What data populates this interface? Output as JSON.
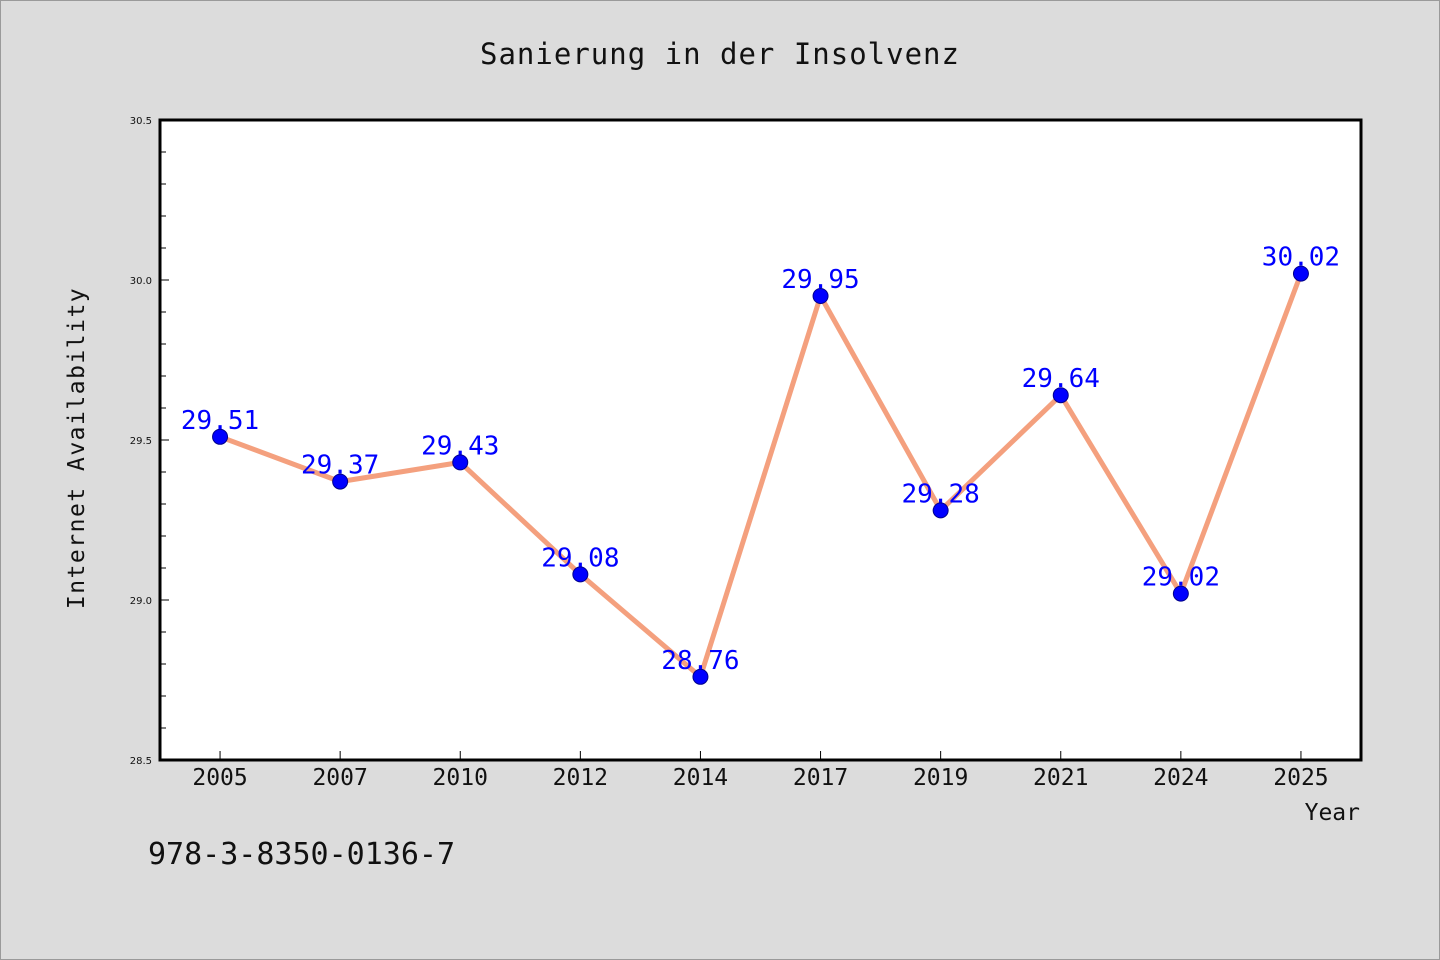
{
  "chart_data": {
    "type": "line",
    "title": "Sanierung in der Insolvenz",
    "xlabel": "Year",
    "ylabel": "Internet Availability",
    "categories": [
      "2005",
      "2007",
      "2010",
      "2012",
      "2014",
      "2017",
      "2019",
      "2021",
      "2024",
      "2025"
    ],
    "series": [
      {
        "values": [
          29.51,
          29.37,
          29.43,
          29.08,
          28.76,
          29.95,
          29.28,
          29.64,
          29.02,
          30.02
        ]
      }
    ],
    "data_labels": [
      "29.51",
      "29.37",
      "29.43",
      "29.08",
      "28.76",
      "29.95",
      "29.28",
      "29.64",
      "29.02",
      "30.02"
    ],
    "ylim": [
      28.5,
      30.5
    ],
    "yticks": [
      "28.5",
      "29.0",
      "29.5",
      "30.0",
      "30.5"
    ],
    "y_minor_step": 0.1,
    "grid": false,
    "legend": "none",
    "line_color": "#f4a07e",
    "marker_color": "#0000ff",
    "label_color": "#0000ff"
  },
  "footer": {
    "isbn": "978-3-8350-0136-7"
  }
}
